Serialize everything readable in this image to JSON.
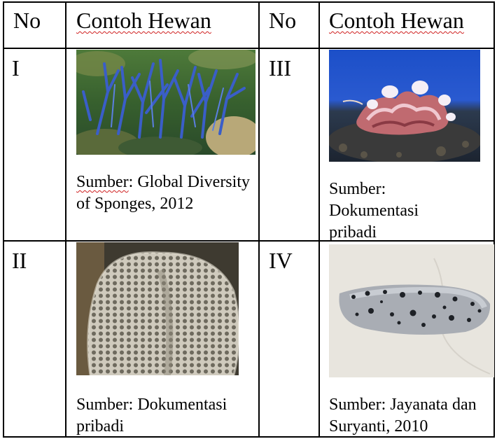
{
  "table": {
    "headers": [
      "No",
      "Contoh Hewan",
      "No",
      "Contoh Hewan"
    ],
    "rows": [
      {
        "left": {
          "no": "I",
          "source_label": "Sumber",
          "source_rest": ": Global Diversity of Sponges, 2012",
          "image": "blue branching sponge on coral reef"
        },
        "right": {
          "no": "III",
          "source_label": "Sumber:",
          "source_rest": "Dokumentasi pribadi",
          "image": "giant clam with wavy mantle"
        }
      },
      {
        "left": {
          "no": "II",
          "source_label": "Sumber:",
          "source_rest": "Dokumentasi pribadi",
          "image": "porous grey sponge"
        },
        "right": {
          "no": "IV",
          "source_label": "Sumber:",
          "source_rest": "Jayanata dan Suryanti, 2010",
          "image": "spotted sea cucumber on sand"
        }
      }
    ]
  },
  "colors": {
    "border": "#000000",
    "spellcheck": "#d02020"
  }
}
